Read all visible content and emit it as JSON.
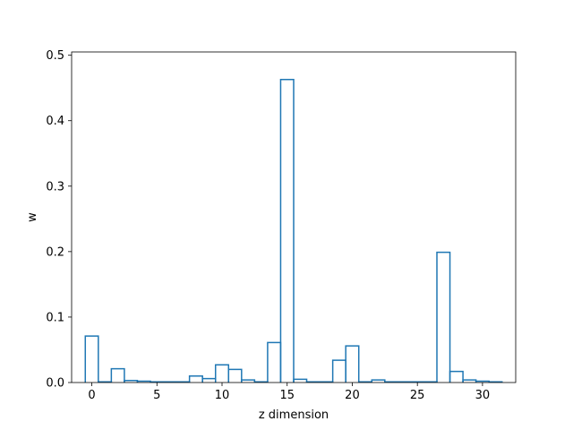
{
  "chart_data": {
    "type": "bar",
    "style": "step-histogram",
    "title": "",
    "xlabel": "z dimension",
    "ylabel": "w",
    "xlim": [
      -1.55,
      32.55
    ],
    "ylim": [
      0,
      0.505
    ],
    "xticks": [
      0,
      5,
      10,
      15,
      20,
      25,
      30
    ],
    "yticks": [
      0.0,
      0.1,
      0.2,
      0.3,
      0.4,
      0.5
    ],
    "ytick_labels": [
      "0.0",
      "0.1",
      "0.2",
      "0.3",
      "0.4",
      "0.5"
    ],
    "grid": false,
    "legend": "none",
    "color": "#1f77b4",
    "x": [
      0,
      1,
      2,
      3,
      4,
      5,
      6,
      7,
      8,
      9,
      10,
      11,
      12,
      13,
      14,
      15,
      16,
      17,
      18,
      19,
      20,
      21,
      22,
      23,
      24,
      25,
      26,
      27,
      28,
      29,
      30,
      31
    ],
    "values": [
      0.071,
      0.001,
      0.021,
      0.003,
      0.002,
      0.001,
      0.001,
      0.001,
      0.01,
      0.006,
      0.027,
      0.02,
      0.004,
      0.001,
      0.061,
      0.463,
      0.005,
      0.001,
      0.001,
      0.034,
      0.056,
      0.001,
      0.004,
      0.001,
      0.001,
      0.001,
      0.001,
      0.199,
      0.017,
      0.004,
      0.002,
      0.001
    ]
  }
}
